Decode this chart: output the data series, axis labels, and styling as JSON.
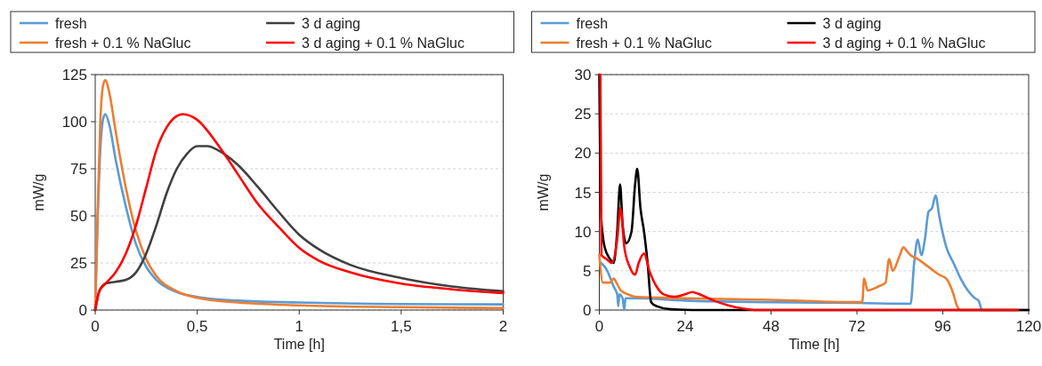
{
  "chart_data": [
    {
      "type": "line",
      "xlabel": "Time [h]",
      "ylabel": "mW/g",
      "xlim": [
        0,
        2
      ],
      "xticks": [
        0,
        {
          "value": 0.5,
          "label": "0,5"
        },
        1,
        {
          "value": 1.5,
          "label": "1,5"
        },
        2
      ],
      "ylim": [
        0,
        125
      ],
      "yticks": [
        0,
        25,
        50,
        75,
        100,
        125
      ],
      "grid": "y",
      "legend": "top",
      "series": [
        {
          "name": "fresh",
          "color": "#5b9bd5",
          "x": [
            0,
            0.01,
            0.025,
            0.04,
            0.05,
            0.07,
            0.1,
            0.15,
            0.2,
            0.25,
            0.3,
            0.4,
            0.5,
            0.7,
            1,
            1.5,
            2
          ],
          "values": [
            0,
            40,
            85,
            102,
            104,
            98,
            80,
            55,
            35,
            23,
            16,
            9.5,
            7,
            5,
            4,
            3.2,
            3
          ]
        },
        {
          "name": "fresh + 0.1 % NaGluc",
          "color": "#ed7d31",
          "x": [
            0,
            0.01,
            0.025,
            0.04,
            0.05,
            0.07,
            0.1,
            0.15,
            0.2,
            0.25,
            0.3,
            0.4,
            0.5,
            0.7,
            1,
            1.5,
            2
          ],
          "values": [
            0,
            45,
            100,
            120,
            122,
            115,
            95,
            65,
            42,
            27,
            18,
            10,
            6.5,
            4,
            2.5,
            1.5,
            1
          ]
        },
        {
          "name": "3 d aging",
          "color": "#404040",
          "x": [
            0,
            0.02,
            0.05,
            0.1,
            0.15,
            0.2,
            0.25,
            0.3,
            0.35,
            0.4,
            0.45,
            0.5,
            0.55,
            0.6,
            0.7,
            0.8,
            0.9,
            1,
            1.1,
            1.25,
            1.5,
            1.75,
            2
          ],
          "values": [
            0,
            10,
            14,
            15,
            16,
            20,
            30,
            45,
            62,
            75,
            83,
            87,
            87,
            85,
            77,
            65,
            52,
            40,
            32,
            24,
            17,
            12.5,
            10
          ]
        },
        {
          "name": "3 d aging + 0.1 % NaGluc",
          "color": "#ff0000",
          "x": [
            0,
            0.02,
            0.05,
            0.1,
            0.15,
            0.2,
            0.25,
            0.3,
            0.35,
            0.4,
            0.43,
            0.5,
            0.6,
            0.7,
            0.8,
            0.9,
            1,
            1.1,
            1.25,
            1.5,
            1.75,
            2
          ],
          "values": [
            0,
            10,
            14,
            20,
            30,
            45,
            65,
            85,
            97,
            103,
            104,
            101,
            88,
            72,
            56,
            44,
            33,
            26,
            20,
            14,
            11,
            9
          ]
        }
      ]
    },
    {
      "type": "line",
      "xlabel": "Time [h]",
      "ylabel": "mW/g",
      "xlim": [
        0,
        120
      ],
      "xticks": [
        0,
        24,
        48,
        72,
        96,
        120
      ],
      "ylim": [
        0,
        30
      ],
      "yticks": [
        0,
        5,
        10,
        15,
        20,
        25,
        30
      ],
      "grid": "y",
      "legend": "top",
      "series": [
        {
          "name": "fresh",
          "color": "#5b9bd5",
          "x": [
            0.5,
            2,
            4,
            5,
            5.3,
            5.6,
            6.5,
            7,
            7.3,
            10,
            24,
            48,
            72,
            87,
            88,
            89,
            90,
            91,
            92,
            93,
            94,
            95,
            97,
            99,
            101,
            103,
            105,
            106,
            107,
            120
          ],
          "values": [
            6,
            5.2,
            3,
            2,
            0.5,
            2,
            1.5,
            0,
            1.5,
            1.5,
            1.2,
            1,
            0.9,
            0.8,
            6,
            9,
            7,
            9,
            12.5,
            13,
            14.6,
            12,
            8,
            6,
            4,
            2.5,
            1.5,
            1.2,
            0,
            0
          ]
        },
        {
          "name": "fresh + 0.1 % NaGluc",
          "color": "#ed7d31",
          "x": [
            0,
            1,
            3,
            4,
            5,
            6,
            8,
            10,
            24,
            48,
            73.5,
            74,
            75,
            78,
            80,
            81,
            82,
            84,
            85,
            86,
            87,
            89,
            92,
            95,
            97,
            99,
            100,
            101,
            120
          ],
          "values": [
            7,
            3.5,
            3.5,
            4,
            3.3,
            2.5,
            2,
            1.7,
            1.5,
            1.3,
            1,
            4,
            2.5,
            3,
            3.5,
            6.5,
            5,
            7,
            8,
            7.5,
            7,
            6.5,
            5.5,
            4.5,
            4,
            2,
            0.5,
            0,
            0
          ]
        },
        {
          "name": "3 d aging",
          "color": "#000000",
          "x": [
            0,
            0.5,
            1.5,
            3,
            4,
            5,
            5.8,
            6.5,
            7.5,
            9,
            10,
            10.6,
            11.5,
            12.5,
            13.5,
            14.5,
            16,
            20,
            30,
            120
          ],
          "values": [
            30,
            12,
            8,
            6.5,
            6,
            10,
            16,
            11,
            8.5,
            10,
            16,
            18,
            13,
            10,
            6,
            1,
            0.5,
            0.1,
            0,
            0
          ]
        },
        {
          "name": "3 d aging + 0.1 % NaGluc",
          "color": "#ff0000",
          "x": [
            0,
            0.3,
            0.6,
            2,
            3.5,
            5,
            5.9,
            7,
            8.5,
            10,
            11,
            12.5,
            14,
            16,
            18,
            21,
            24,
            26,
            28,
            32,
            36,
            40,
            44,
            117
          ],
          "values": [
            30,
            30,
            7,
            6.5,
            6,
            9,
            13,
            8,
            5.5,
            4.5,
            6,
            7.2,
            5,
            3,
            2,
            1.7,
            2,
            2.3,
            2,
            1.2,
            0.6,
            0.2,
            0,
            0
          ]
        }
      ]
    }
  ]
}
